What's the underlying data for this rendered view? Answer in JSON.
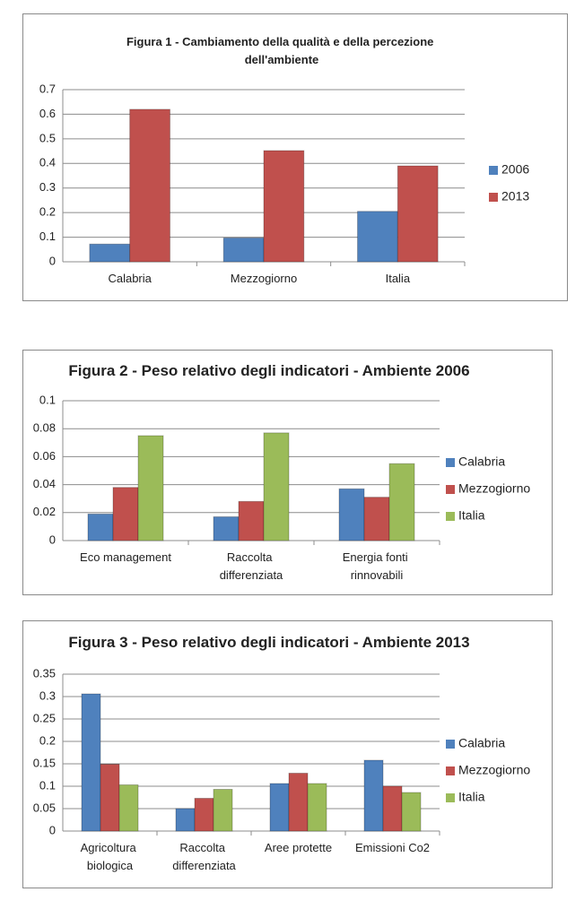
{
  "chart_data": [
    {
      "type": "bar",
      "title": "Figura 1 - Cambiamento della qualità e della percezione dell'ambiente",
      "categories": [
        "Calabria",
        "Mezzogiorno",
        "Italia"
      ],
      "series": [
        {
          "name": "2006",
          "color": "#4f81bd",
          "values": [
            0.072,
            0.097,
            0.205
          ]
        },
        {
          "name": "2013",
          "color": "#c0504d",
          "values": [
            0.62,
            0.452,
            0.39
          ]
        }
      ],
      "ylim": [
        0,
        0.7
      ],
      "yticks": [
        0,
        0.1,
        0.2,
        0.3,
        0.4,
        0.5,
        0.6,
        0.7
      ],
      "grid": true,
      "legend": "right"
    },
    {
      "type": "bar",
      "title": "Figura 2 - Peso relativo degli indicatori - Ambiente 2006",
      "categories": [
        "Eco management",
        "Raccolta differenziata",
        "Energia fonti rinnovabili"
      ],
      "series": [
        {
          "name": "Calabria",
          "color": "#4f81bd",
          "values": [
            0.019,
            0.017,
            0.037
          ]
        },
        {
          "name": "Mezzogiorno",
          "color": "#c0504d",
          "values": [
            0.038,
            0.028,
            0.031
          ]
        },
        {
          "name": "Italia",
          "color": "#9bbb59",
          "values": [
            0.075,
            0.077,
            0.055
          ]
        }
      ],
      "ylim": [
        0,
        0.1
      ],
      "yticks": [
        0,
        0.02,
        0.04,
        0.06,
        0.08,
        0.1
      ],
      "grid": true,
      "legend": "right"
    },
    {
      "type": "bar",
      "title": "Figura 3 - Peso relativo degli indicatori - Ambiente 2013",
      "categories": [
        "Agricoltura biologica",
        "Raccolta differenziata",
        "Aree protette",
        "Emissioni Co2"
      ],
      "series": [
        {
          "name": "Calabria",
          "color": "#4f81bd",
          "values": [
            0.306,
            0.05,
            0.106,
            0.158
          ]
        },
        {
          "name": "Mezzogiorno",
          "color": "#c0504d",
          "values": [
            0.149,
            0.073,
            0.129,
            0.1
          ]
        },
        {
          "name": "Italia",
          "color": "#9bbb59",
          "values": [
            0.103,
            0.093,
            0.106,
            0.086
          ]
        }
      ],
      "ylim": [
        0,
        0.35
      ],
      "yticks": [
        0,
        0.05,
        0.1,
        0.15,
        0.2,
        0.25,
        0.3,
        0.35
      ],
      "grid": true,
      "legend": "right"
    }
  ]
}
